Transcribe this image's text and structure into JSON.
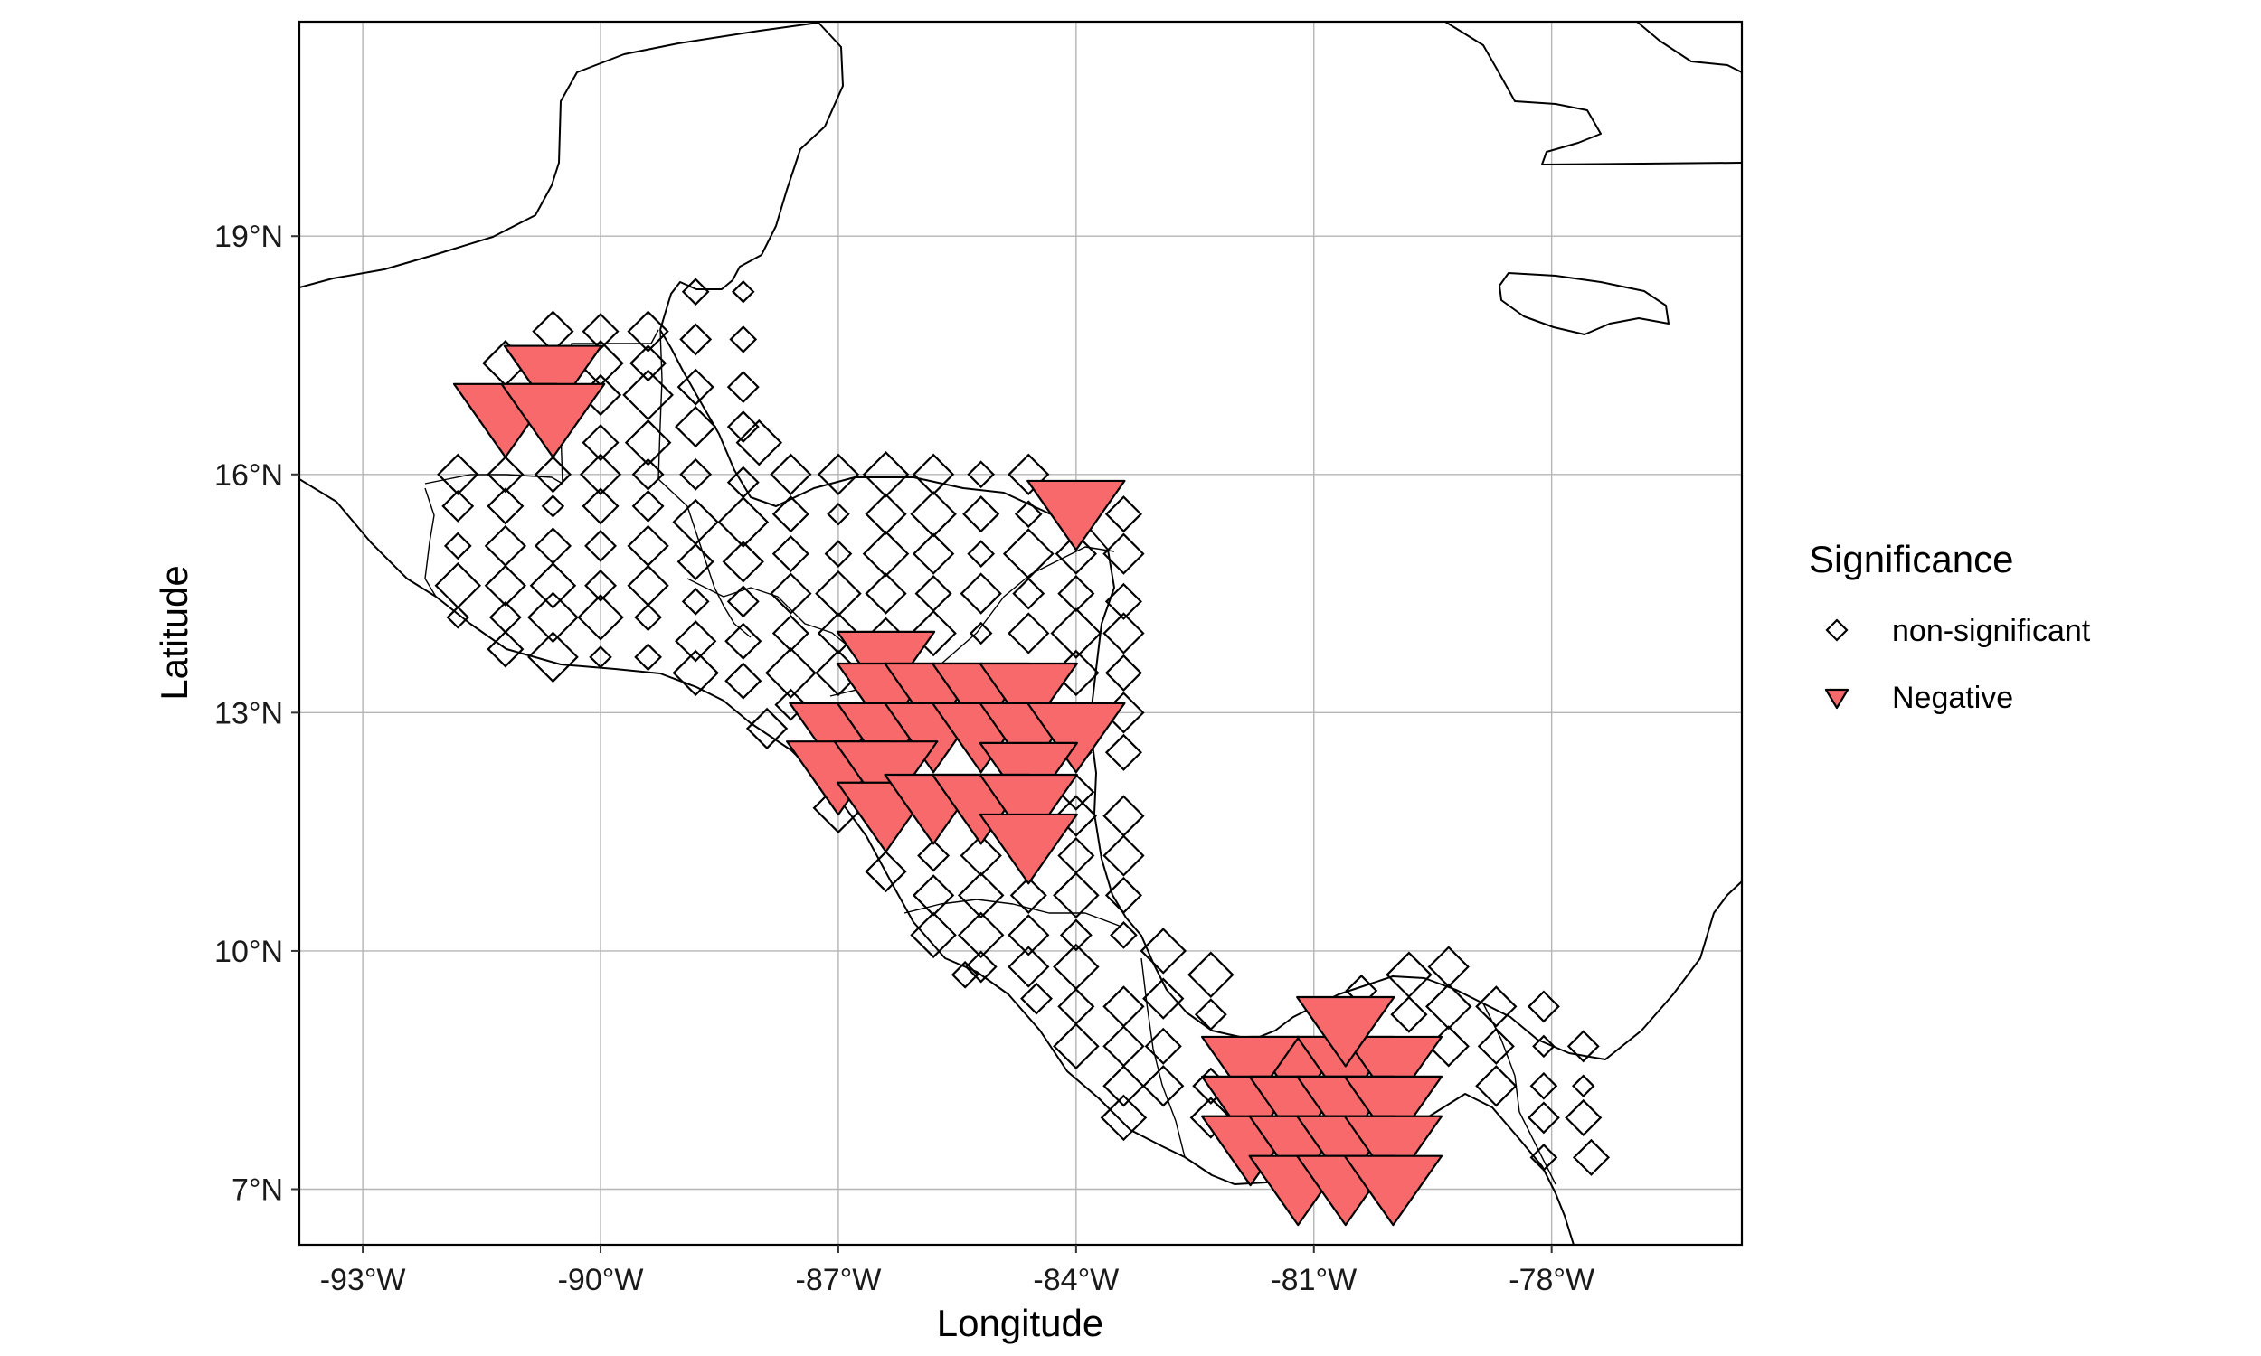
{
  "axes": {
    "xlabel": "Longitude",
    "ylabel": "Latitude",
    "x_ticks": [
      {
        "value": -93,
        "label": "-93°W"
      },
      {
        "value": -90,
        "label": "-90°W"
      },
      {
        "value": -87,
        "label": "-87°W"
      },
      {
        "value": -84,
        "label": "-84°W"
      },
      {
        "value": -81,
        "label": "-81°W"
      },
      {
        "value": -78,
        "label": "-78°W"
      }
    ],
    "y_ticks": [
      {
        "value": 7,
        "label": "7°N"
      },
      {
        "value": 10,
        "label": "10°N"
      },
      {
        "value": 13,
        "label": "13°N"
      },
      {
        "value": 16,
        "label": "16°N"
      },
      {
        "value": 19,
        "label": "19°N"
      }
    ]
  },
  "legend": {
    "title": "Significance",
    "items": [
      {
        "label": "non-significant",
        "shape": "diamond-open"
      },
      {
        "label": "Negative",
        "shape": "triangle-down-filled",
        "color": "#f8696b"
      }
    ]
  },
  "colors": {
    "negative": "#f8696b",
    "grid": "#b5b5b5",
    "outline": "#000000"
  },
  "chart_data": {
    "type": "scatter",
    "xlabel": "Longitude",
    "ylabel": "Latitude",
    "xlim": [
      -93.8,
      -75.6
    ],
    "ylim": [
      6.3,
      21.7
    ],
    "grid": true,
    "legend_position": "right",
    "marker_size_encoding": "unlabeled",
    "series": [
      {
        "name": "non-significant",
        "points": [
          [
            -91.2,
            17.4,
            0.7
          ],
          [
            -90.6,
            17.8,
            0.6
          ],
          [
            -90.0,
            17.8,
            0.5
          ],
          [
            -89.4,
            17.8,
            0.6
          ],
          [
            -90.6,
            17.4,
            0.5
          ],
          [
            -90.0,
            17.4,
            0.7
          ],
          [
            -89.4,
            17.4,
            0.5
          ],
          [
            -90.6,
            16.4,
            0.2
          ],
          [
            -90.0,
            16.4,
            0.5
          ],
          [
            -89.4,
            16.4,
            0.7
          ],
          [
            -90.0,
            17.0,
            0.6
          ],
          [
            -89.4,
            17.0,
            0.8
          ],
          [
            -90.6,
            16.0,
            0.5
          ],
          [
            -90.0,
            16.0,
            0.6
          ],
          [
            -89.4,
            16.0,
            0.4
          ],
          [
            -88.8,
            18.3,
            0.3
          ],
          [
            -88.2,
            18.3,
            0.2
          ],
          [
            -88.8,
            17.7,
            0.4
          ],
          [
            -88.2,
            17.7,
            0.3
          ],
          [
            -88.8,
            17.1,
            0.5
          ],
          [
            -88.2,
            17.1,
            0.4
          ],
          [
            -88.8,
            16.6,
            0.6
          ],
          [
            -88.2,
            16.6,
            0.4
          ],
          [
            -88.0,
            16.4,
            0.7
          ],
          [
            -88.8,
            16.0,
            0.4
          ],
          [
            -91.8,
            16.0,
            0.6
          ],
          [
            -91.2,
            16.0,
            0.5
          ],
          [
            -91.8,
            15.6,
            0.4
          ],
          [
            -91.2,
            15.6,
            0.5
          ],
          [
            -90.6,
            15.6,
            0.2
          ],
          [
            -90.0,
            15.6,
            0.5
          ],
          [
            -89.4,
            15.6,
            0.4
          ],
          [
            -91.8,
            15.1,
            0.3
          ],
          [
            -91.2,
            15.1,
            0.6
          ],
          [
            -90.6,
            15.1,
            0.5
          ],
          [
            -90.0,
            15.1,
            0.4
          ],
          [
            -89.4,
            15.1,
            0.6
          ],
          [
            -91.8,
            14.6,
            0.7
          ],
          [
            -91.2,
            14.6,
            0.6
          ],
          [
            -90.6,
            14.6,
            0.7
          ],
          [
            -90.0,
            14.6,
            0.4
          ],
          [
            -89.4,
            14.6,
            0.6
          ],
          [
            -91.8,
            14.2,
            0.2
          ],
          [
            -91.2,
            14.2,
            0.4
          ],
          [
            -90.6,
            14.2,
            0.8
          ],
          [
            -90.0,
            14.2,
            0.7
          ],
          [
            -89.4,
            14.2,
            0.3
          ],
          [
            -91.2,
            13.8,
            0.5
          ],
          [
            -90.6,
            13.7,
            0.8
          ],
          [
            -90.0,
            13.7,
            0.2
          ],
          [
            -89.4,
            13.7,
            0.3
          ],
          [
            -88.8,
            15.4,
            0.7
          ],
          [
            -88.2,
            15.4,
            0.8
          ],
          [
            -88.8,
            14.9,
            0.5
          ],
          [
            -88.2,
            14.9,
            0.6
          ],
          [
            -88.8,
            14.4,
            0.3
          ],
          [
            -88.2,
            14.4,
            0.4
          ],
          [
            -88.8,
            13.9,
            0.6
          ],
          [
            -88.2,
            13.9,
            0.5
          ],
          [
            -88.8,
            13.5,
            0.7
          ],
          [
            -88.2,
            13.4,
            0.5
          ],
          [
            -88.2,
            15.9,
            0.4
          ],
          [
            -87.6,
            16.0,
            0.6
          ],
          [
            -87.0,
            16.0,
            0.6
          ],
          [
            -86.4,
            16.0,
            0.7
          ],
          [
            -85.8,
            16.0,
            0.6
          ],
          [
            -85.2,
            16.0,
            0.3
          ],
          [
            -84.6,
            16.0,
            0.6
          ],
          [
            -87.6,
            15.5,
            0.5
          ],
          [
            -87.0,
            15.5,
            0.2
          ],
          [
            -86.4,
            15.5,
            0.6
          ],
          [
            -85.8,
            15.5,
            0.7
          ],
          [
            -85.2,
            15.5,
            0.5
          ],
          [
            -84.6,
            15.5,
            0.3
          ],
          [
            -83.4,
            15.5,
            0.5
          ],
          [
            -87.6,
            15.0,
            0.5
          ],
          [
            -87.0,
            15.0,
            0.3
          ],
          [
            -86.4,
            15.0,
            0.7
          ],
          [
            -85.8,
            15.0,
            0.6
          ],
          [
            -85.2,
            15.0,
            0.3
          ],
          [
            -84.6,
            15.0,
            0.8
          ],
          [
            -84.0,
            15.0,
            0.6
          ],
          [
            -83.4,
            15.0,
            0.6
          ],
          [
            -87.6,
            14.5,
            0.6
          ],
          [
            -87.0,
            14.5,
            0.7
          ],
          [
            -86.4,
            14.5,
            0.6
          ],
          [
            -85.8,
            14.5,
            0.5
          ],
          [
            -85.2,
            14.5,
            0.6
          ],
          [
            -84.6,
            14.5,
            0.4
          ],
          [
            -84.0,
            14.5,
            0.5
          ],
          [
            -83.4,
            14.4,
            0.5
          ],
          [
            -87.6,
            14.0,
            0.5
          ],
          [
            -87.0,
            14.0,
            0.6
          ],
          [
            -86.4,
            14.0,
            0.4
          ],
          [
            -85.8,
            14.0,
            0.7
          ],
          [
            -85.2,
            14.0,
            0.2
          ],
          [
            -84.6,
            14.0,
            0.6
          ],
          [
            -84.0,
            14.0,
            0.8
          ],
          [
            -83.4,
            14.0,
            0.6
          ],
          [
            -87.6,
            13.5,
            0.8
          ],
          [
            -87.0,
            13.5,
            0.7
          ],
          [
            -84.0,
            13.5,
            0.7
          ],
          [
            -83.4,
            13.5,
            0.5
          ],
          [
            -87.6,
            13.1,
            0.4
          ],
          [
            -87.9,
            12.8,
            0.6
          ],
          [
            -83.4,
            13.0,
            0.6
          ],
          [
            -83.4,
            12.5,
            0.5
          ],
          [
            -84.0,
            12.5,
            0.4
          ],
          [
            -87.0,
            11.8,
            0.8
          ],
          [
            -86.4,
            11.6,
            0.6
          ],
          [
            -85.8,
            11.2,
            0.4
          ],
          [
            -85.2,
            11.2,
            0.6
          ],
          [
            -84.6,
            11.7,
            0.5
          ],
          [
            -84.0,
            11.7,
            0.6
          ],
          [
            -83.4,
            11.7,
            0.6
          ],
          [
            -84.0,
            12.0,
            0.5
          ],
          [
            -86.4,
            11.0,
            0.6
          ],
          [
            -84.0,
            11.2,
            0.5
          ],
          [
            -83.4,
            11.2,
            0.6
          ],
          [
            -85.8,
            10.7,
            0.6
          ],
          [
            -85.2,
            10.7,
            0.7
          ],
          [
            -84.6,
            10.7,
            0.5
          ],
          [
            -84.0,
            10.7,
            0.7
          ],
          [
            -83.4,
            10.7,
            0.5
          ],
          [
            -85.8,
            10.2,
            0.7
          ],
          [
            -85.2,
            10.2,
            0.7
          ],
          [
            -84.6,
            10.2,
            0.6
          ],
          [
            -84.0,
            10.2,
            0.4
          ],
          [
            -83.4,
            10.2,
            0.3
          ],
          [
            -85.2,
            9.8,
            0.4
          ],
          [
            -84.6,
            9.8,
            0.6
          ],
          [
            -84.0,
            9.8,
            0.7
          ],
          [
            -85.4,
            9.7,
            0.3
          ],
          [
            -84.5,
            9.4,
            0.4
          ],
          [
            -84.0,
            9.3,
            0.5
          ],
          [
            -83.4,
            9.3,
            0.6
          ],
          [
            -84.0,
            8.8,
            0.7
          ],
          [
            -82.9,
            10.0,
            0.7
          ],
          [
            -82.3,
            9.7,
            0.7
          ],
          [
            -82.9,
            9.4,
            0.6
          ],
          [
            -82.3,
            9.2,
            0.4
          ],
          [
            -83.4,
            8.8,
            0.6
          ],
          [
            -82.9,
            8.8,
            0.5
          ],
          [
            -83.4,
            8.3,
            0.6
          ],
          [
            -82.9,
            8.3,
            0.6
          ],
          [
            -82.3,
            8.3,
            0.5
          ],
          [
            -83.4,
            7.9,
            0.7
          ],
          [
            -82.3,
            7.9,
            0.6
          ],
          [
            -81.8,
            7.4,
            0.6
          ],
          [
            -80.4,
            9.5,
            0.4
          ],
          [
            -79.8,
            9.7,
            0.7
          ],
          [
            -79.3,
            9.8,
            0.6
          ],
          [
            -79.8,
            9.2,
            0.5
          ],
          [
            -79.3,
            9.3,
            0.7
          ],
          [
            -78.7,
            9.3,
            0.6
          ],
          [
            -78.1,
            9.3,
            0.4
          ],
          [
            -79.3,
            8.8,
            0.6
          ],
          [
            -78.7,
            8.8,
            0.5
          ],
          [
            -78.1,
            8.8,
            0.2
          ],
          [
            -77.6,
            8.8,
            0.4
          ],
          [
            -78.7,
            8.3,
            0.6
          ],
          [
            -78.1,
            8.3,
            0.3
          ],
          [
            -77.6,
            8.3,
            0.2
          ],
          [
            -78.1,
            7.9,
            0.4
          ],
          [
            -77.6,
            7.9,
            0.5
          ],
          [
            -78.1,
            7.4,
            0.3
          ],
          [
            -77.5,
            7.4,
            0.5
          ]
        ]
      },
      {
        "name": "Negative",
        "points": [
          [
            -90.6,
            17.3,
            0.8
          ],
          [
            -91.2,
            16.8,
            0.9
          ],
          [
            -90.6,
            16.8,
            0.9
          ],
          [
            -84.0,
            15.6,
            0.8
          ],
          [
            -86.4,
            13.7,
            0.8
          ],
          [
            -86.4,
            13.3,
            0.8
          ],
          [
            -85.8,
            13.3,
            0.8
          ],
          [
            -85.2,
            13.3,
            0.8
          ],
          [
            -84.6,
            13.3,
            0.8
          ],
          [
            -87.0,
            12.8,
            0.8
          ],
          [
            -86.4,
            12.8,
            0.8
          ],
          [
            -85.8,
            12.8,
            0.8
          ],
          [
            -85.2,
            12.8,
            0.8
          ],
          [
            -84.6,
            12.8,
            0.8
          ],
          [
            -84.0,
            12.8,
            0.8
          ],
          [
            -87.0,
            12.3,
            0.9
          ],
          [
            -86.4,
            12.3,
            0.9
          ],
          [
            -84.6,
            12.3,
            0.8
          ],
          [
            -86.4,
            11.8,
            0.8
          ],
          [
            -85.8,
            11.9,
            0.8
          ],
          [
            -85.2,
            11.9,
            0.8
          ],
          [
            -84.6,
            11.9,
            0.8
          ],
          [
            -84.6,
            11.4,
            0.8
          ],
          [
            -81.2,
            8.6,
            0.8
          ],
          [
            -80.6,
            8.6,
            0.8
          ],
          [
            -80.0,
            8.6,
            0.8
          ],
          [
            -80.6,
            9.1,
            0.8
          ],
          [
            -81.8,
            8.6,
            0.8
          ],
          [
            -81.8,
            8.1,
            0.8
          ],
          [
            -81.2,
            8.1,
            0.8
          ],
          [
            -80.6,
            8.1,
            0.8
          ],
          [
            -80.0,
            8.1,
            0.8
          ],
          [
            -81.8,
            7.6,
            0.8
          ],
          [
            -81.2,
            7.6,
            0.8
          ],
          [
            -80.6,
            7.6,
            0.8
          ],
          [
            -80.0,
            7.6,
            0.8
          ],
          [
            -81.2,
            7.1,
            0.8
          ],
          [
            -80.6,
            7.1,
            0.8
          ],
          [
            -80.0,
            7.1,
            0.8
          ]
        ]
      }
    ]
  }
}
